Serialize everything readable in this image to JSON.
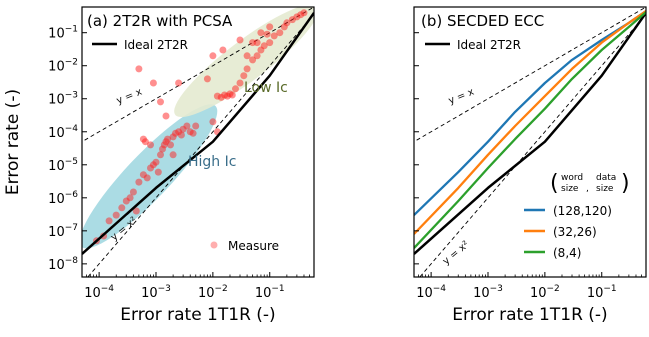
{
  "chart_data": [
    {
      "type": "scatter",
      "panel_title": "(a) 2T2R with PCSA",
      "xlabel": "Error rate 1T1R (-)",
      "ylabel": "Error rate (-)",
      "x_scale": "log",
      "y_scale": "log",
      "xlim": [
        5e-05,
        0.6
      ],
      "ylim": [
        4e-09,
        0.6
      ],
      "x_ticks": [
        "10^-4",
        "10^-3",
        "10^-2",
        "10^-1"
      ],
      "y_ticks": [
        "10^-8",
        "10^-7",
        "10^-6",
        "10^-5",
        "10^-4",
        "10^-3",
        "10^-2",
        "10^-1"
      ],
      "legend": {
        "position": "top-left",
        "entries": [
          "Ideal 2T2R"
        ]
      },
      "legend2": {
        "position": "bottom-right",
        "entries": [
          "Measure"
        ]
      },
      "annotations": [
        "y = x",
        "y = x²",
        "Low Ic",
        "High Ic"
      ],
      "colors": {
        "ideal": "#000000",
        "measure": "#ff2020",
        "low_ic_region": "#e4ead0",
        "high_ic_region": "#8fd0db",
        "low_ic_text": "#5a6b2a",
        "high_ic_text": "#3a6e8a"
      },
      "series": [
        {
          "name": "Ideal 2T2R",
          "style": "line",
          "x": [
            5e-05,
            0.001,
            0.01,
            0.1,
            0.6
          ],
          "y": [
            2e-08,
            2e-06,
            5e-05,
            0.005,
            0.4
          ]
        },
        {
          "name": "Measure",
          "style": "scatter",
          "points": [
            [
              9e-05,
              5e-08
            ],
            [
              0.00012,
              7e-08
            ],
            [
              0.00015,
              2e-07
            ],
            [
              0.0002,
              3e-07
            ],
            [
              0.00025,
              5e-07
            ],
            [
              0.0003,
              8e-07
            ],
            [
              0.00035,
              1e-06
            ],
            [
              0.0004,
              1.5e-06
            ],
            [
              0.0005,
              3e-06
            ],
            [
              0.0006,
              5e-06
            ],
            [
              0.0007,
              4e-06
            ],
            [
              0.0008,
              8e-06
            ],
            [
              0.0009,
              1e-05
            ],
            [
              0.001,
              1.2e-05
            ],
            [
              0.0012,
              2e-05
            ],
            [
              0.0013,
              3e-05
            ],
            [
              0.0014,
              4e-05
            ],
            [
              0.0015,
              5e-05
            ],
            [
              0.0016,
              6e-05
            ],
            [
              0.0018,
              4e-05
            ],
            [
              0.002,
              7e-05
            ],
            [
              0.0022,
              9e-05
            ],
            [
              0.0025,
              0.0001
            ],
            [
              0.0028,
              8e-05
            ],
            [
              0.003,
              0.00012
            ],
            [
              0.0035,
              0.00015
            ],
            [
              0.004,
              0.0001
            ],
            [
              0.0045,
              9e-05
            ],
            [
              0.005,
              0.00015
            ],
            [
              0.0006,
              6e-05
            ],
            [
              0.0008,
              4e-05
            ],
            [
              0.00065,
              5e-05
            ],
            [
              0.0012,
              0.0008
            ],
            [
              0.0005,
              0.008
            ],
            [
              0.0009,
              0.003
            ],
            [
              0.0015,
              0.0003
            ],
            [
              0.0025,
              0.003
            ],
            [
              0.002,
              2e-05
            ],
            [
              0.0011,
              6e-06
            ],
            [
              0.00045,
              4e-07
            ],
            [
              0.012,
              0.0012
            ],
            [
              0.014,
              0.0011
            ],
            [
              0.016,
              0.0013
            ],
            [
              0.018,
              0.0012
            ],
            [
              0.02,
              0.0014
            ],
            [
              0.022,
              0.0013
            ],
            [
              0.025,
              0.002
            ],
            [
              0.03,
              0.003
            ],
            [
              0.035,
              0.005
            ],
            [
              0.04,
              0.008
            ],
            [
              0.05,
              0.015
            ],
            [
              0.06,
              0.02
            ],
            [
              0.07,
              0.03
            ],
            [
              0.08,
              0.04
            ],
            [
              0.1,
              0.05
            ],
            [
              0.12,
              0.08
            ],
            [
              0.15,
              0.1
            ],
            [
              0.18,
              0.15
            ],
            [
              0.2,
              0.2
            ],
            [
              0.25,
              0.25
            ],
            [
              0.3,
              0.3
            ],
            [
              0.35,
              0.35
            ],
            [
              0.4,
              0.4
            ],
            [
              0.01,
              0.02
            ],
            [
              0.015,
              0.03
            ],
            [
              0.008,
              0.004
            ],
            [
              0.03,
              0.06
            ],
            [
              0.05,
              0.05
            ],
            [
              0.07,
              0.1
            ],
            [
              0.1,
              0.15
            ],
            [
              0.012,
              0.0001
            ],
            [
              0.01,
              0.0002
            ],
            [
              0.04,
              0.02
            ],
            [
              0.06,
              0.05
            ],
            [
              0.09,
              0.09
            ]
          ]
        }
      ]
    },
    {
      "type": "line",
      "panel_title": "(b) SECDED ECC",
      "xlabel": "Error rate 1T1R (-)",
      "x_scale": "log",
      "y_scale": "log",
      "xlim": [
        5e-05,
        0.6
      ],
      "ylim": [
        4e-09,
        0.6
      ],
      "x_ticks": [
        "10^-4",
        "10^-3",
        "10^-2",
        "10^-1"
      ],
      "legend": {
        "position": "top-left",
        "entries": [
          "Ideal 2T2R"
        ]
      },
      "legend2": {
        "position": "bottom-right",
        "header_word": "word",
        "header_data": "data",
        "header_size1": "size",
        "header_size2": "size",
        "entries": [
          "(128,120)",
          "(32,26)",
          "(8,4)"
        ]
      },
      "annotations": [
        "y = x",
        "y = x²"
      ],
      "series": [
        {
          "name": "Ideal 2T2R",
          "color": "#000000",
          "x": [
            5e-05,
            0.001,
            0.01,
            0.1,
            0.6
          ],
          "y": [
            2e-08,
            2e-06,
            5e-05,
            0.005,
            0.4
          ]
        },
        {
          "name": "(128,120)",
          "color": "#1f77b4",
          "x": [
            5e-05,
            0.0003,
            0.001,
            0.003,
            0.01,
            0.03,
            0.1,
            0.3,
            0.6
          ],
          "y": [
            3e-07,
            6e-06,
            5e-05,
            0.0004,
            0.003,
            0.015,
            0.06,
            0.2,
            0.45
          ]
        },
        {
          "name": "(32,26)",
          "color": "#ff7f0e",
          "x": [
            5e-05,
            0.0003,
            0.001,
            0.003,
            0.01,
            0.03,
            0.1,
            0.3,
            0.6
          ],
          "y": [
            8e-08,
            2e-06,
            2e-05,
            0.00015,
            0.0012,
            0.008,
            0.05,
            0.2,
            0.45
          ]
        },
        {
          "name": "(8,4)",
          "color": "#2ca02c",
          "x": [
            5e-05,
            0.0003,
            0.001,
            0.003,
            0.01,
            0.03,
            0.1,
            0.3,
            0.6
          ],
          "y": [
            3e-08,
            8e-07,
            8e-06,
            6e-05,
            0.0005,
            0.004,
            0.03,
            0.15,
            0.42
          ]
        }
      ]
    }
  ]
}
